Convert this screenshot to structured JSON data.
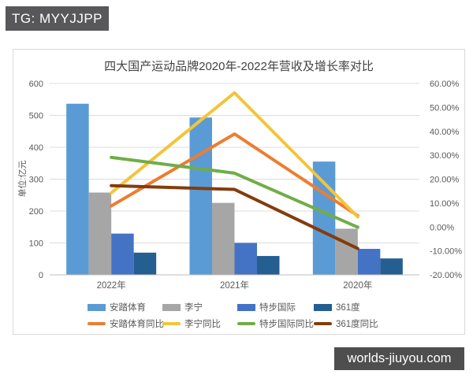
{
  "badge": {
    "text": "TG: MYYJJPP",
    "bg": "#58585a"
  },
  "watermark": {
    "text": "worlds-jiuyou.com",
    "bg": "#4e4e4e"
  },
  "chart_data": {
    "type": "combo-bar-line",
    "title": "四大国产运动品牌2020年-2022年营收及增长率对比",
    "categories": [
      "2022年",
      "2021年",
      "2020年"
    ],
    "left_axis": {
      "title": "单位:亿元",
      "min": 0,
      "max": 600,
      "step": 100
    },
    "right_axis": {
      "min": -20,
      "max": 60,
      "step": 10,
      "decimals": 2,
      "suffix": "%"
    },
    "grid": true,
    "legend_position": "bottom",
    "bar_series": [
      {
        "name": "安踏体育",
        "color": "#5b9bd5",
        "values": [
          536.5,
          493.3,
          355.1
        ]
      },
      {
        "name": "李宁",
        "color": "#a6a6a6",
        "values": [
          258.0,
          225.6,
          144.6
        ]
      },
      {
        "name": "特步国际",
        "color": "#4472c4",
        "values": [
          129.3,
          100.1,
          81.4
        ]
      },
      {
        "name": "361度",
        "color": "#255e91",
        "values": [
          69.6,
          59.1,
          51.4
        ]
      }
    ],
    "line_series": [
      {
        "name": "安踏体育同比",
        "color": "#ed7d31",
        "values_pct": [
          8.8,
          38.9,
          4.7
        ]
      },
      {
        "name": "李宁同比",
        "color": "#f2c539",
        "values_pct": [
          14.3,
          56.1,
          4.2
        ]
      },
      {
        "name": "特步国际同比",
        "color": "#70ad47",
        "values_pct": [
          29.1,
          22.5,
          -0.1
        ]
      },
      {
        "name": "361度同比",
        "color": "#843c0c",
        "values_pct": [
          17.3,
          15.7,
          -9.0
        ]
      }
    ],
    "colors": {
      "grid_line": "#dcdcdc",
      "axis_line": "#bfbfbf",
      "tick_text": "#595959",
      "frame_border": "#d9d9d9"
    }
  }
}
